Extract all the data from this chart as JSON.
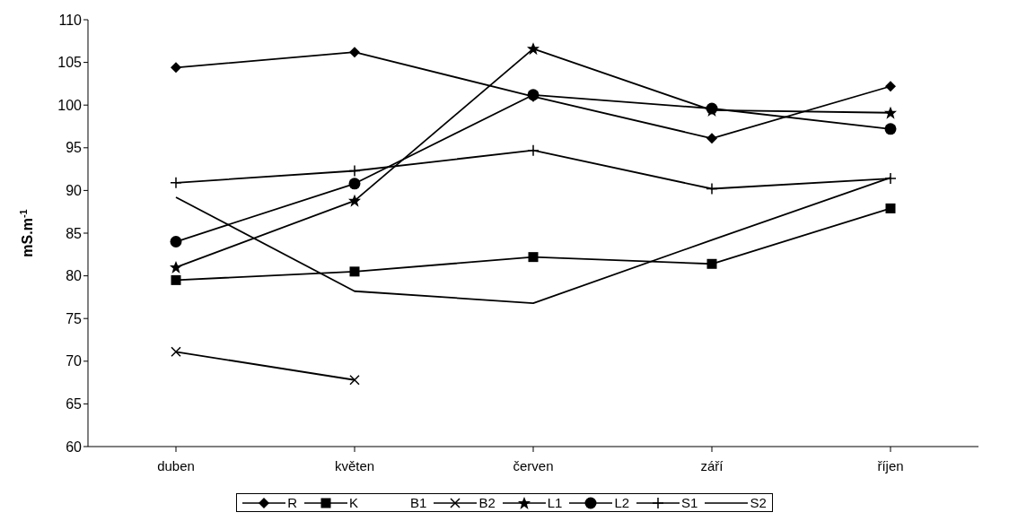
{
  "chart_data": {
    "type": "line",
    "ylabel": "mS.m$^{-1}$",
    "categories": [
      "duben",
      "květen",
      "červen",
      "září",
      "říjen"
    ],
    "ylim": [
      60,
      110
    ],
    "yticks": [
      60,
      65,
      70,
      75,
      80,
      85,
      90,
      95,
      100,
      105,
      110
    ],
    "grid": false,
    "legend": "bottom",
    "line_style": "solid",
    "series": [
      {
        "name": "R",
        "color": "#000000",
        "marker": "diamond",
        "values": [
          104.4,
          106.2,
          101.0,
          96.1,
          102.2
        ]
      },
      {
        "name": "K",
        "color": "#000000",
        "marker": "square",
        "values": [
          79.5,
          80.5,
          82.2,
          81.4,
          87.9
        ]
      },
      {
        "name": "B1",
        "marker": "none",
        "values": [
          null,
          null,
          null,
          null,
          null
        ]
      },
      {
        "name": "B2",
        "color": "#000000",
        "marker": "x",
        "values": [
          71.1,
          67.8,
          null,
          null,
          null
        ]
      },
      {
        "name": "L1",
        "color": "#000000",
        "marker": "star",
        "values": [
          81.0,
          88.8,
          106.6,
          99.4,
          99.1
        ]
      },
      {
        "name": "L2",
        "color": "#000000",
        "marker": "circle",
        "values": [
          84.0,
          90.8,
          101.2,
          99.6,
          97.2
        ]
      },
      {
        "name": "S1",
        "color": "#000000",
        "marker": "cross",
        "values": [
          90.9,
          92.3,
          94.7,
          90.2,
          91.4
        ]
      },
      {
        "name": "S2",
        "color": "#000000",
        "marker": "none",
        "values": [
          89.2,
          78.2,
          76.8,
          84.2,
          91.5
        ]
      }
    ]
  }
}
